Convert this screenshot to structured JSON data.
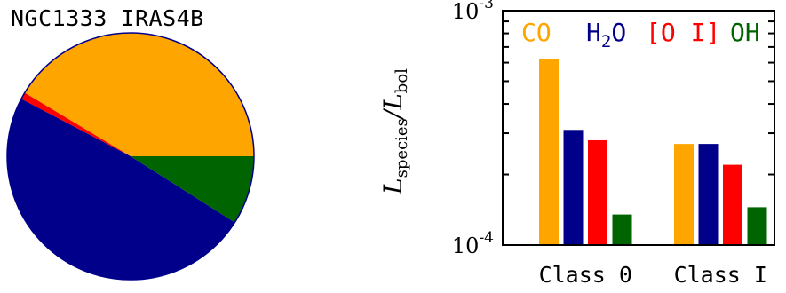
{
  "colors": {
    "CO": "#ffa500",
    "H2O": "#00008b",
    "OI": "#ff0000",
    "OH": "#006400"
  },
  "chart_data": [
    {
      "type": "pie",
      "title": "NGC1333 IRAS4B",
      "slices": [
        {
          "label": "CO",
          "value": 41.4,
          "color": "#ffa500"
        },
        {
          "label": "[O I]",
          "value": 0.9,
          "color": "#ff0000"
        },
        {
          "label": "H2O",
          "value": 48.7,
          "color": "#00008b"
        },
        {
          "label": "OH",
          "value": 9.0,
          "color": "#006400"
        }
      ]
    },
    {
      "type": "bar",
      "ylabel_main": "L",
      "ylabel_sub1": "species",
      "ylabel_sep": "/L",
      "ylabel_sub2": "bol",
      "yscale": "log",
      "ylim": [
        0.0001,
        0.001
      ],
      "yticks": [
        {
          "base": "10",
          "exp": "-3",
          "value": 0.001
        },
        {
          "base": "10",
          "exp": "-4",
          "value": 0.0001
        }
      ],
      "categories": [
        "Class 0",
        "Class I"
      ],
      "legend": [
        {
          "name": "CO",
          "color": "#ffa500"
        },
        {
          "name": "H2O",
          "base": "H",
          "sub": "2",
          "rest": "O",
          "color": "#00008b"
        },
        {
          "name": "[O I]",
          "color": "#ff0000"
        },
        {
          "name": "OH",
          "color": "#006400"
        }
      ],
      "series": [
        {
          "name": "CO",
          "color": "#ffa500",
          "values": [
            0.00062,
            0.00027
          ]
        },
        {
          "name": "H2O",
          "color": "#00008b",
          "values": [
            0.00031,
            0.00027
          ]
        },
        {
          "name": "[O I]",
          "color": "#ff0000",
          "values": [
            0.00028,
            0.00022
          ]
        },
        {
          "name": "OH",
          "color": "#006400",
          "values": [
            0.000135,
            0.000145
          ]
        }
      ]
    }
  ]
}
